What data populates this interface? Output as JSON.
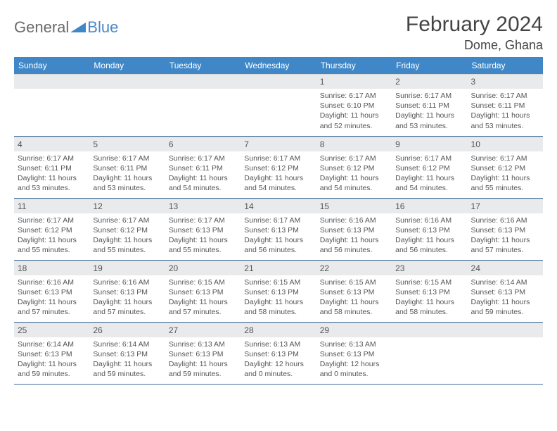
{
  "logo": {
    "text1": "General",
    "text2": "Blue",
    "triangle_color": "#3f87c7"
  },
  "title": "February 2024",
  "location": "Dome, Ghana",
  "colors": {
    "header_bg": "#3f87c7",
    "header_text": "#ffffff",
    "daynum_bg": "#e9eaeb",
    "row_border": "#3f6fa0",
    "body_text": "#555555",
    "page_bg": "#ffffff"
  },
  "weekdays": [
    "Sunday",
    "Monday",
    "Tuesday",
    "Wednesday",
    "Thursday",
    "Friday",
    "Saturday"
  ],
  "first_weekday_index": 4,
  "days": [
    {
      "n": 1,
      "sunrise": "6:17 AM",
      "sunset": "6:10 PM",
      "daylight": "11 hours and 52 minutes."
    },
    {
      "n": 2,
      "sunrise": "6:17 AM",
      "sunset": "6:11 PM",
      "daylight": "11 hours and 53 minutes."
    },
    {
      "n": 3,
      "sunrise": "6:17 AM",
      "sunset": "6:11 PM",
      "daylight": "11 hours and 53 minutes."
    },
    {
      "n": 4,
      "sunrise": "6:17 AM",
      "sunset": "6:11 PM",
      "daylight": "11 hours and 53 minutes."
    },
    {
      "n": 5,
      "sunrise": "6:17 AM",
      "sunset": "6:11 PM",
      "daylight": "11 hours and 53 minutes."
    },
    {
      "n": 6,
      "sunrise": "6:17 AM",
      "sunset": "6:11 PM",
      "daylight": "11 hours and 54 minutes."
    },
    {
      "n": 7,
      "sunrise": "6:17 AM",
      "sunset": "6:12 PM",
      "daylight": "11 hours and 54 minutes."
    },
    {
      "n": 8,
      "sunrise": "6:17 AM",
      "sunset": "6:12 PM",
      "daylight": "11 hours and 54 minutes."
    },
    {
      "n": 9,
      "sunrise": "6:17 AM",
      "sunset": "6:12 PM",
      "daylight": "11 hours and 54 minutes."
    },
    {
      "n": 10,
      "sunrise": "6:17 AM",
      "sunset": "6:12 PM",
      "daylight": "11 hours and 55 minutes."
    },
    {
      "n": 11,
      "sunrise": "6:17 AM",
      "sunset": "6:12 PM",
      "daylight": "11 hours and 55 minutes."
    },
    {
      "n": 12,
      "sunrise": "6:17 AM",
      "sunset": "6:12 PM",
      "daylight": "11 hours and 55 minutes."
    },
    {
      "n": 13,
      "sunrise": "6:17 AM",
      "sunset": "6:13 PM",
      "daylight": "11 hours and 55 minutes."
    },
    {
      "n": 14,
      "sunrise": "6:17 AM",
      "sunset": "6:13 PM",
      "daylight": "11 hours and 56 minutes."
    },
    {
      "n": 15,
      "sunrise": "6:16 AM",
      "sunset": "6:13 PM",
      "daylight": "11 hours and 56 minutes."
    },
    {
      "n": 16,
      "sunrise": "6:16 AM",
      "sunset": "6:13 PM",
      "daylight": "11 hours and 56 minutes."
    },
    {
      "n": 17,
      "sunrise": "6:16 AM",
      "sunset": "6:13 PM",
      "daylight": "11 hours and 57 minutes."
    },
    {
      "n": 18,
      "sunrise": "6:16 AM",
      "sunset": "6:13 PM",
      "daylight": "11 hours and 57 minutes."
    },
    {
      "n": 19,
      "sunrise": "6:16 AM",
      "sunset": "6:13 PM",
      "daylight": "11 hours and 57 minutes."
    },
    {
      "n": 20,
      "sunrise": "6:15 AM",
      "sunset": "6:13 PM",
      "daylight": "11 hours and 57 minutes."
    },
    {
      "n": 21,
      "sunrise": "6:15 AM",
      "sunset": "6:13 PM",
      "daylight": "11 hours and 58 minutes."
    },
    {
      "n": 22,
      "sunrise": "6:15 AM",
      "sunset": "6:13 PM",
      "daylight": "11 hours and 58 minutes."
    },
    {
      "n": 23,
      "sunrise": "6:15 AM",
      "sunset": "6:13 PM",
      "daylight": "11 hours and 58 minutes."
    },
    {
      "n": 24,
      "sunrise": "6:14 AM",
      "sunset": "6:13 PM",
      "daylight": "11 hours and 59 minutes."
    },
    {
      "n": 25,
      "sunrise": "6:14 AM",
      "sunset": "6:13 PM",
      "daylight": "11 hours and 59 minutes."
    },
    {
      "n": 26,
      "sunrise": "6:14 AM",
      "sunset": "6:13 PM",
      "daylight": "11 hours and 59 minutes."
    },
    {
      "n": 27,
      "sunrise": "6:13 AM",
      "sunset": "6:13 PM",
      "daylight": "11 hours and 59 minutes."
    },
    {
      "n": 28,
      "sunrise": "6:13 AM",
      "sunset": "6:13 PM",
      "daylight": "12 hours and 0 minutes."
    },
    {
      "n": 29,
      "sunrise": "6:13 AM",
      "sunset": "6:13 PM",
      "daylight": "12 hours and 0 minutes."
    }
  ],
  "labels": {
    "sunrise": "Sunrise:",
    "sunset": "Sunset:",
    "daylight": "Daylight:"
  }
}
